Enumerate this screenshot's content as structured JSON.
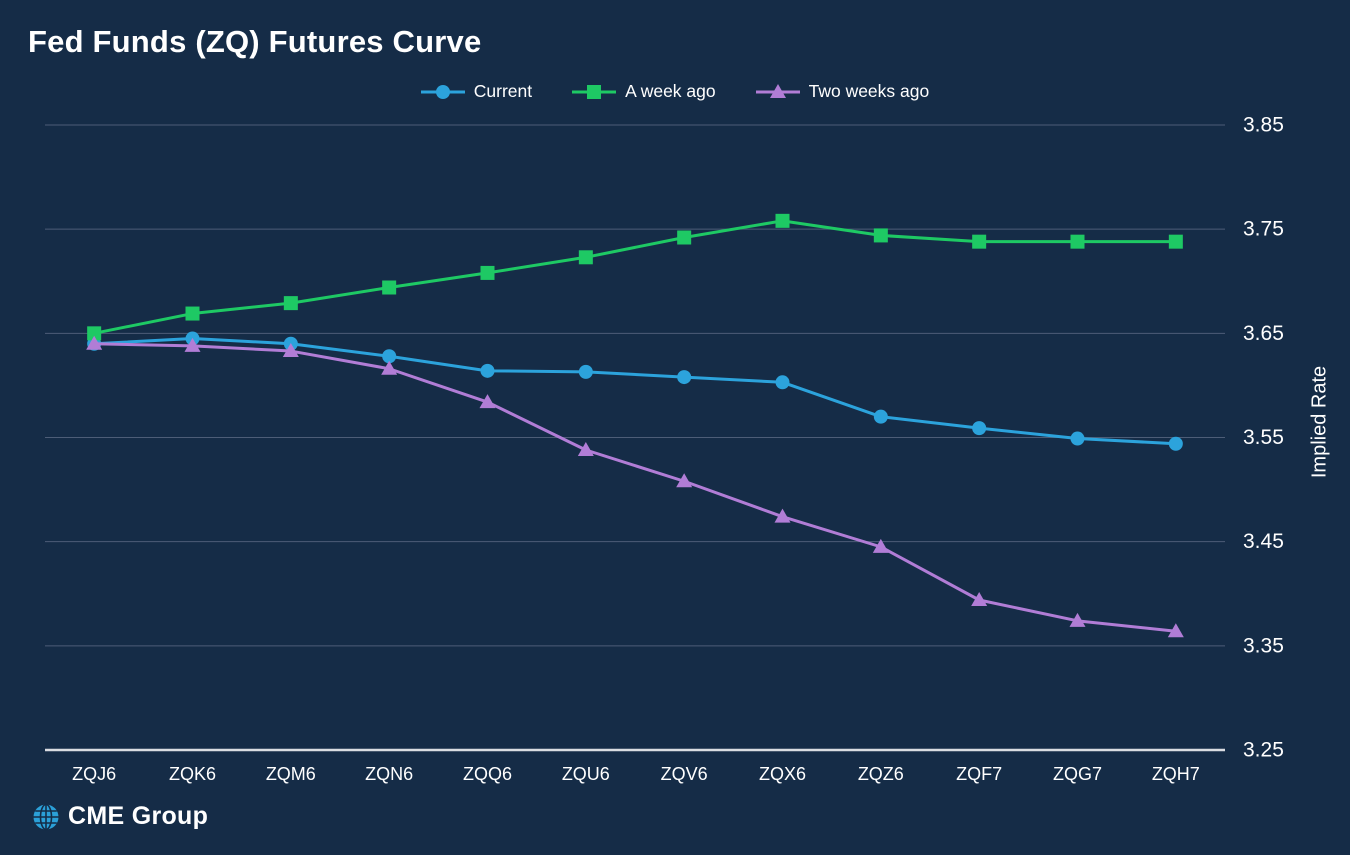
{
  "title": "Fed Funds (ZQ) Futures Curve",
  "y_axis_title": "Implied Rate",
  "footer": {
    "logo_text": "CME Group"
  },
  "colors": {
    "background": "#152c47",
    "current": "#2ca3dc",
    "week_ago": "#1ec964",
    "two_weeks_ago": "#b17dd6",
    "gridline": "#4d5d77",
    "axis_line": "#dadde2",
    "text": "#ffffff",
    "logo_globe": "#2ba0d8"
  },
  "chart_data": {
    "type": "line",
    "title": "Fed Funds (ZQ) Futures Curve",
    "categories": [
      "ZQJ6",
      "ZQK6",
      "ZQM6",
      "ZQN6",
      "ZQQ6",
      "ZQU6",
      "ZQV6",
      "ZQX6",
      "ZQZ6",
      "ZQF7",
      "ZQG7",
      "ZQH7"
    ],
    "series": [
      {
        "name": "Current",
        "marker": "circle",
        "color": "#2ca3dc",
        "values": [
          3.64,
          3.645,
          3.64,
          3.628,
          3.614,
          3.613,
          3.608,
          3.603,
          3.57,
          3.559,
          3.549,
          3.544
        ]
      },
      {
        "name": "A week ago",
        "marker": "square",
        "color": "#1ec964",
        "values": [
          3.65,
          3.669,
          3.679,
          3.694,
          3.708,
          3.723,
          3.742,
          3.758,
          3.744,
          3.738,
          3.738,
          3.738
        ]
      },
      {
        "name": "Two weeks ago",
        "marker": "triangle",
        "color": "#b17dd6",
        "values": [
          3.64,
          3.638,
          3.633,
          3.616,
          3.584,
          3.538,
          3.508,
          3.474,
          3.445,
          3.394,
          3.374,
          3.364
        ]
      }
    ],
    "xlabel": "",
    "ylabel": "Implied Rate",
    "ylim": [
      3.25,
      3.85
    ],
    "yticks": [
      3.25,
      3.35,
      3.45,
      3.55,
      3.65,
      3.75,
      3.85
    ],
    "grid": true,
    "legend_position": "top"
  }
}
